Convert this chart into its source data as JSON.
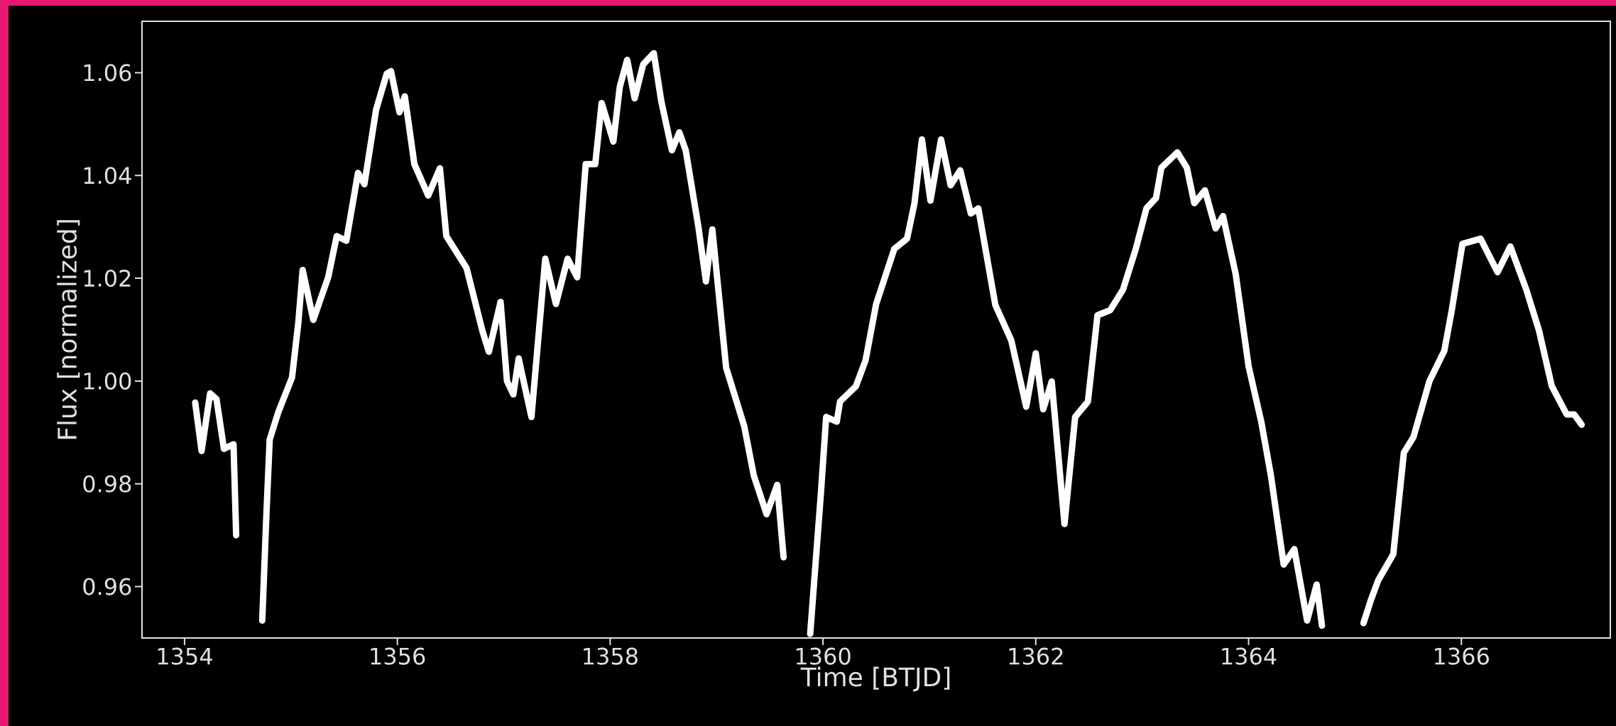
{
  "chart_data": {
    "type": "line",
    "xlabel": "Time [BTJD]",
    "ylabel": "Flux [normalized]",
    "color": "#ffffff",
    "xlim": [
      1353.6,
      1367.4
    ],
    "ylim": [
      0.95,
      1.07
    ],
    "xticks": [
      1354,
      1356,
      1358,
      1360,
      1362,
      1364,
      1366
    ],
    "yticks": [
      0.96,
      0.98,
      {
        "value": 1.0,
        "label": "1.00"
      },
      1.02,
      1.04,
      1.06
    ],
    "x": [
      1354.1,
      1354.16,
      1354.24,
      1354.3,
      1354.37,
      1354.46,
      1354.485,
      1354.6,
      1354.73,
      1354.77,
      1354.8,
      1354.88,
      1355.01,
      1355.07,
      1355.11,
      1355.21,
      1355.35,
      1355.43,
      1355.52,
      1355.63,
      1355.69,
      1355.8,
      1355.9,
      1355.94,
      1356.02,
      1356.07,
      1356.16,
      1356.29,
      1356.4,
      1356.46,
      1356.65,
      1356.8,
      1356.86,
      1356.97,
      1357.03,
      1357.09,
      1357.14,
      1357.26,
      1357.39,
      1357.49,
      1357.6,
      1357.69,
      1357.77,
      1357.86,
      1357.92,
      1358.03,
      1358.09,
      1358.16,
      1358.23,
      1358.31,
      1358.41,
      1358.48,
      1358.58,
      1358.65,
      1358.71,
      1358.83,
      1358.9,
      1358.96,
      1359.09,
      1359.26,
      1359.35,
      1359.47,
      1359.57,
      1359.63,
      1359.75,
      1359.88,
      1359.98,
      1360.03,
      1360.13,
      1360.16,
      1360.31,
      1360.4,
      1360.5,
      1360.67,
      1360.79,
      1360.86,
      1360.93,
      1361.01,
      1361.11,
      1361.2,
      1361.29,
      1361.39,
      1361.46,
      1361.62,
      1361.77,
      1361.91,
      1362.0,
      1362.07,
      1362.15,
      1362.27,
      1362.37,
      1362.49,
      1362.58,
      1362.7,
      1362.82,
      1362.94,
      1363.04,
      1363.13,
      1363.18,
      1363.33,
      1363.42,
      1363.49,
      1363.59,
      1363.69,
      1363.76,
      1363.88,
      1364.0,
      1364.12,
      1364.21,
      1364.33,
      1364.43,
      1364.55,
      1364.64,
      1364.69,
      1364.88,
      1365.08,
      1365.15,
      1365.22,
      1365.36,
      1365.46,
      1365.55,
      1365.7,
      1365.84,
      1365.91,
      1366.01,
      1366.18,
      1366.34,
      1366.46,
      1366.61,
      1366.73,
      1366.85,
      1366.99,
      1367.06,
      1367.13
    ],
    "values": [
      0.9958,
      0.9864,
      0.9976,
      0.9965,
      0.9868,
      0.9877,
      0.97,
      null,
      0.9534,
      0.9745,
      0.9886,
      0.9939,
      1.0007,
      1.0115,
      1.0216,
      1.0119,
      1.0202,
      1.0282,
      1.0273,
      1.0405,
      1.0383,
      1.0528,
      1.0598,
      1.0603,
      1.0523,
      1.0554,
      1.0422,
      1.0361,
      1.0414,
      1.0282,
      1.022,
      1.0097,
      1.0057,
      1.0154,
      1.0,
      0.9974,
      1.0044,
      0.993,
      1.0238,
      1.015,
      1.0238,
      1.0202,
      1.0422,
      1.0422,
      1.0541,
      1.0466,
      1.0572,
      1.0625,
      1.055,
      1.0616,
      1.0638,
      1.0545,
      1.0449,
      1.0484,
      1.0449,
      1.0299,
      1.0194,
      1.0295,
      1.0026,
      0.9912,
      0.9816,
      0.9741,
      0.9798,
      0.9657,
      null,
      0.9508,
      0.978,
      0.993,
      0.9921,
      0.996,
      0.999,
      1.004,
      1.015,
      1.0257,
      1.0277,
      1.0346,
      1.047,
      1.0351,
      1.047,
      1.0381,
      1.041,
      1.0326,
      1.0336,
      1.0148,
      1.0079,
      0.995,
      1.0054,
      0.9945,
      0.9999,
      0.9722,
      0.993,
      0.996,
      1.0128,
      1.0138,
      1.0178,
      1.0257,
      1.0336,
      1.0356,
      1.0415,
      1.0445,
      1.0415,
      1.0346,
      1.0371,
      1.0297,
      1.0321,
      1.0207,
      1.0029,
      0.992,
      0.9816,
      0.9643,
      0.9673,
      0.9534,
      0.9604,
      0.9524,
      null,
      0.9529,
      0.9574,
      0.9613,
      0.9663,
      0.9861,
      0.9891,
      1.0,
      1.0059,
      1.0138,
      1.0267,
      1.0277,
      1.0212,
      1.0262,
      1.0178,
      1.0098,
      0.999,
      0.9935,
      0.9935,
      0.9915
    ]
  }
}
